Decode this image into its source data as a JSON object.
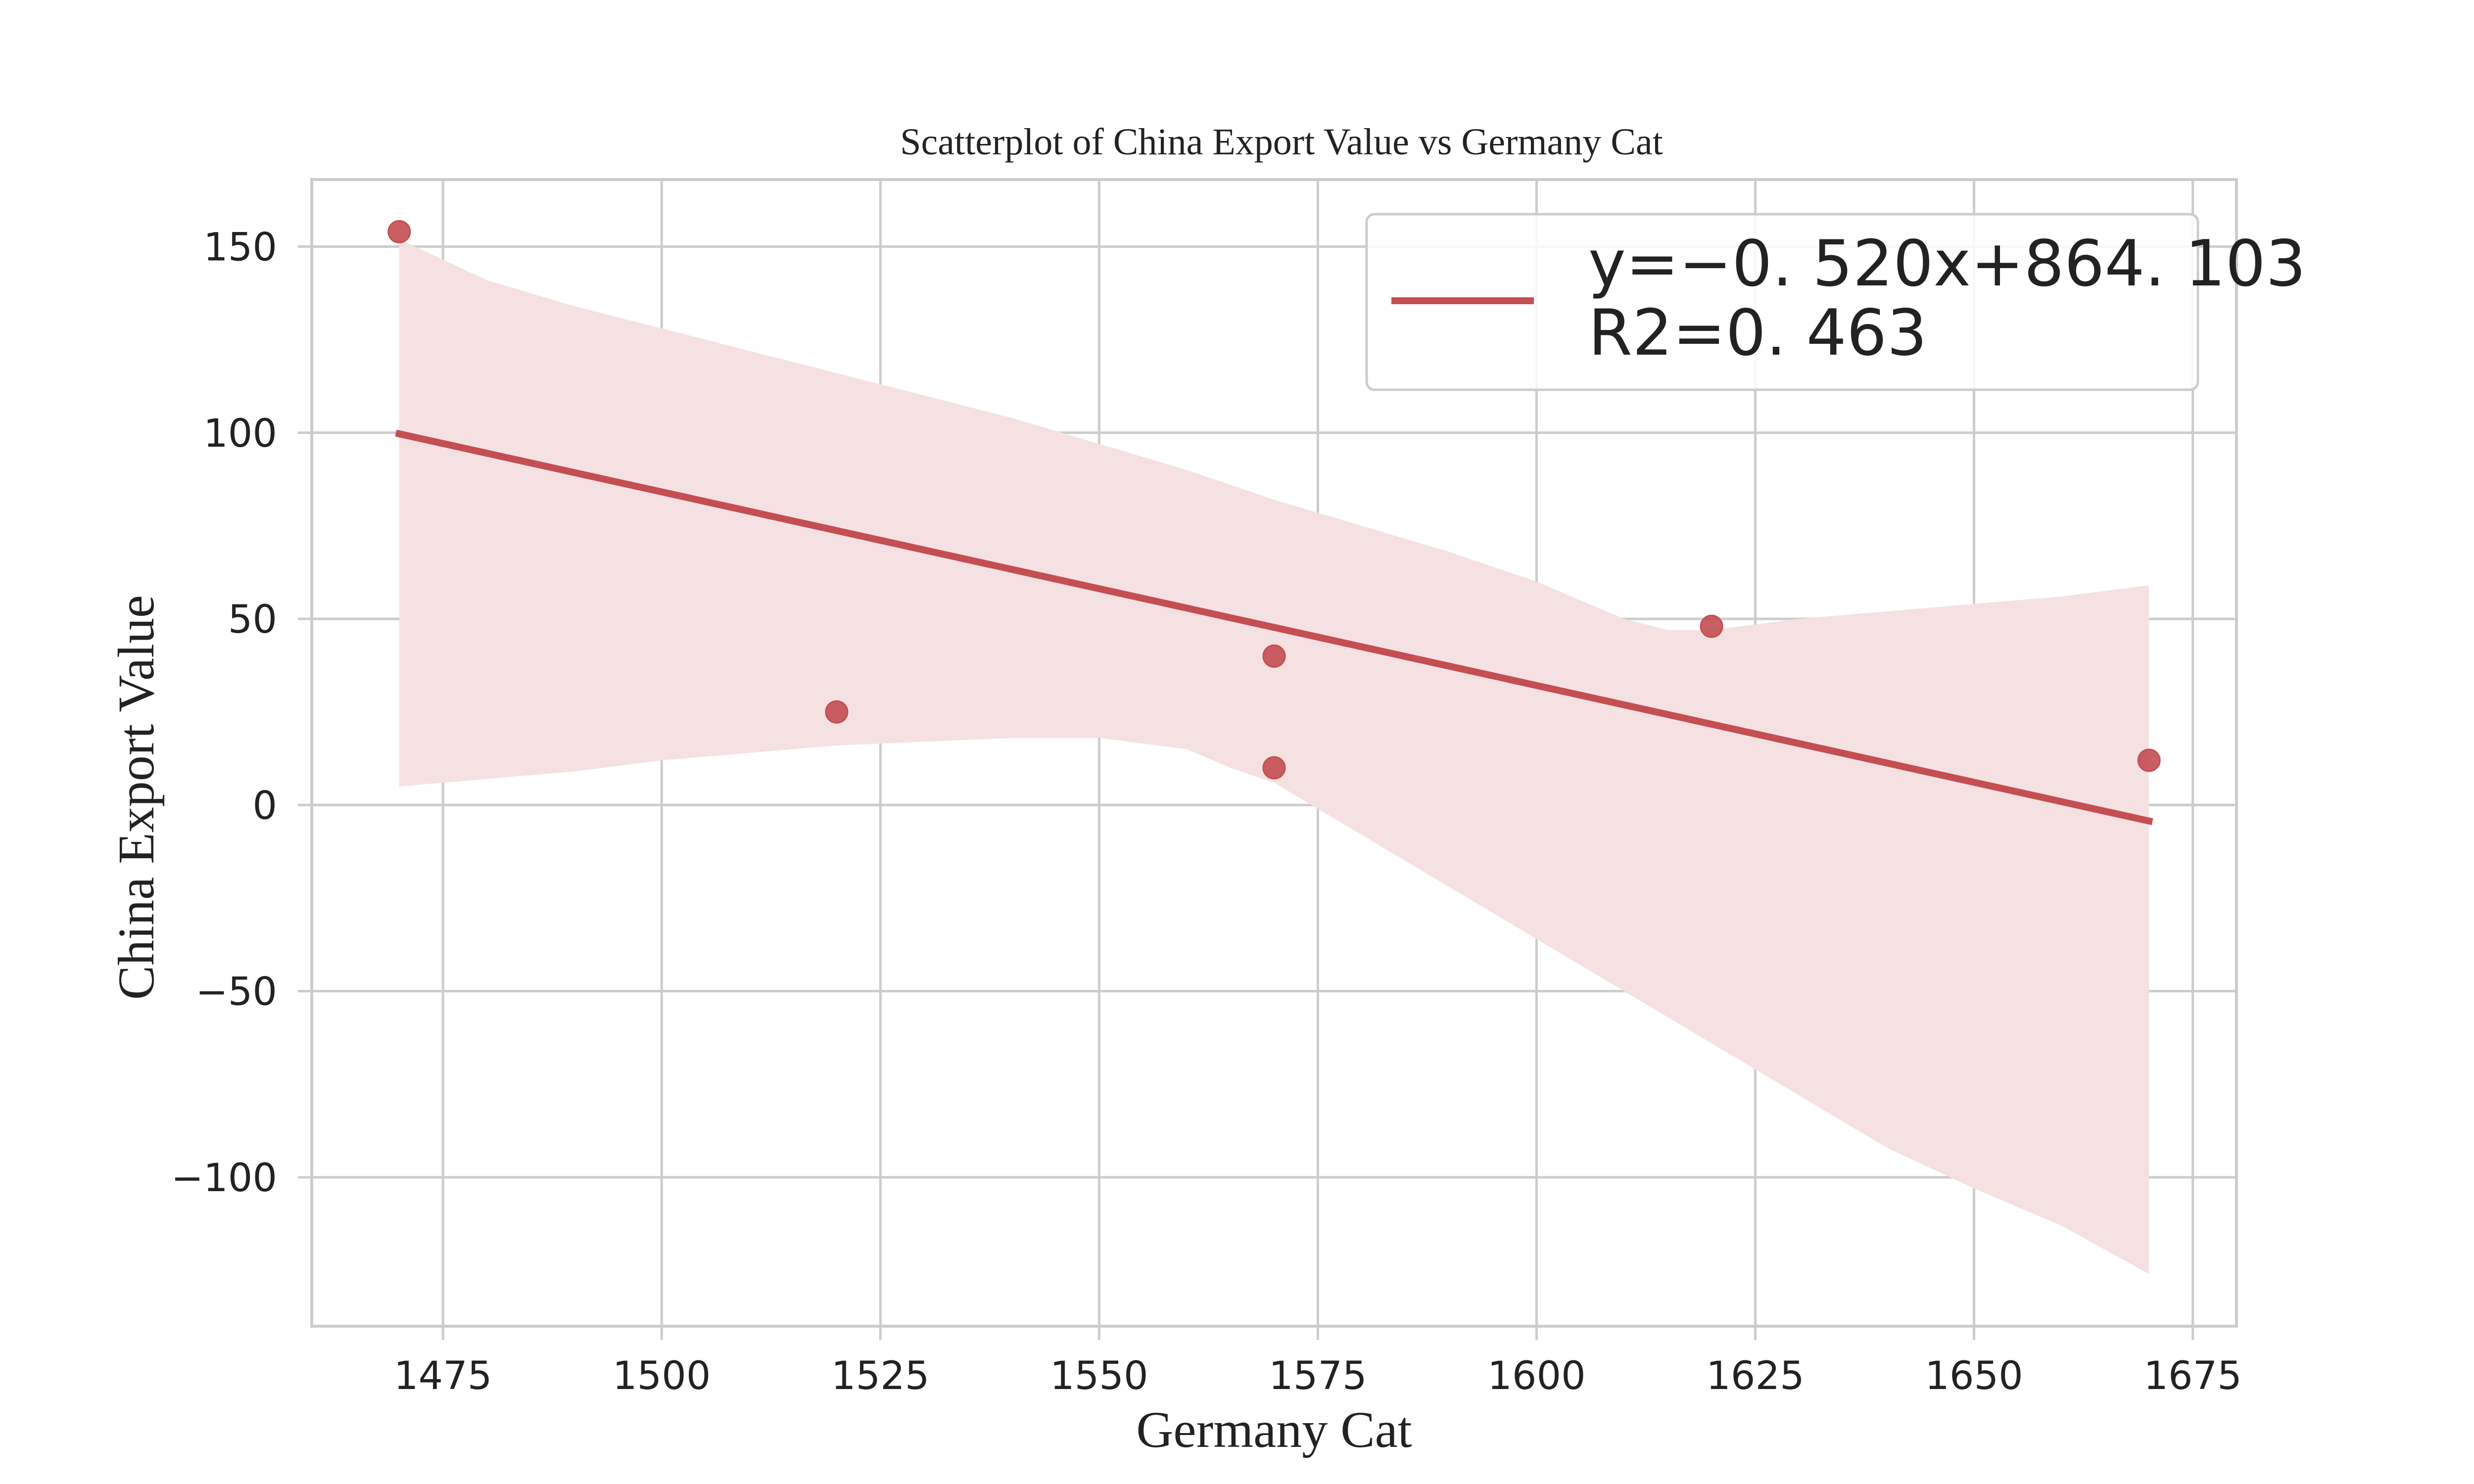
{
  "chart_data": {
    "type": "scatter",
    "title": "Scatterplot of China Export Value vs Germany Cat",
    "xlabel": "Germany Cat",
    "ylabel": "China Export Value",
    "xlim": [
      1460,
      1680
    ],
    "ylim": [
      -140,
      168
    ],
    "xticks": [
      1475,
      1500,
      1525,
      1550,
      1575,
      1600,
      1625,
      1650,
      1675
    ],
    "yticks": [
      150,
      100,
      50,
      0,
      -50,
      -100
    ],
    "xtick_labels": [
      "1475",
      "1500",
      "1525",
      "1550",
      "1575",
      "1600",
      "1625",
      "1650",
      "1675"
    ],
    "ytick_labels": [
      "150",
      "100",
      "50",
      "0",
      "−50",
      "−100"
    ],
    "grid": true,
    "legend_position": "top-right",
    "color": "#c44e52",
    "band_color": "#f5e1e2",
    "points": [
      {
        "x": 1470,
        "y": 154
      },
      {
        "x": 1520,
        "y": 25
      },
      {
        "x": 1570,
        "y": 40
      },
      {
        "x": 1570,
        "y": 10
      },
      {
        "x": 1620,
        "y": 48
      },
      {
        "x": 1670,
        "y": 12
      }
    ],
    "regression": {
      "slope": -0.52,
      "intercept": 864.103,
      "x_range": [
        1470,
        1670
      ],
      "legend_line1": "y=−0. 520x+864. 103",
      "legend_line2": "R2=0. 463"
    },
    "confidence_band": {
      "upper": [
        {
          "x": 1470,
          "y": 152
        },
        {
          "x": 1480,
          "y": 141
        },
        {
          "x": 1490,
          "y": 134
        },
        {
          "x": 1500,
          "y": 128
        },
        {
          "x": 1510,
          "y": 122
        },
        {
          "x": 1520,
          "y": 116
        },
        {
          "x": 1530,
          "y": 110
        },
        {
          "x": 1540,
          "y": 104
        },
        {
          "x": 1550,
          "y": 97
        },
        {
          "x": 1560,
          "y": 90
        },
        {
          "x": 1570,
          "y": 82
        },
        {
          "x": 1580,
          "y": 75
        },
        {
          "x": 1590,
          "y": 68
        },
        {
          "x": 1600,
          "y": 60
        },
        {
          "x": 1610,
          "y": 50
        },
        {
          "x": 1615,
          "y": 47
        },
        {
          "x": 1620,
          "y": 47
        },
        {
          "x": 1630,
          "y": 50
        },
        {
          "x": 1640,
          "y": 52
        },
        {
          "x": 1650,
          "y": 54
        },
        {
          "x": 1660,
          "y": 56
        },
        {
          "x": 1670,
          "y": 59
        }
      ],
      "lower": [
        {
          "x": 1470,
          "y": 5
        },
        {
          "x": 1480,
          "y": 7
        },
        {
          "x": 1490,
          "y": 9
        },
        {
          "x": 1500,
          "y": 12
        },
        {
          "x": 1510,
          "y": 14
        },
        {
          "x": 1520,
          "y": 16
        },
        {
          "x": 1530,
          "y": 17
        },
        {
          "x": 1540,
          "y": 18
        },
        {
          "x": 1550,
          "y": 18
        },
        {
          "x": 1560,
          "y": 15
        },
        {
          "x": 1565,
          "y": 10
        },
        {
          "x": 1570,
          "y": 6
        },
        {
          "x": 1580,
          "y": -8
        },
        {
          "x": 1590,
          "y": -22
        },
        {
          "x": 1600,
          "y": -36
        },
        {
          "x": 1610,
          "y": -50
        },
        {
          "x": 1620,
          "y": -64
        },
        {
          "x": 1630,
          "y": -78
        },
        {
          "x": 1640,
          "y": -92
        },
        {
          "x": 1650,
          "y": -103
        },
        {
          "x": 1660,
          "y": -113
        },
        {
          "x": 1670,
          "y": -126
        }
      ]
    }
  }
}
